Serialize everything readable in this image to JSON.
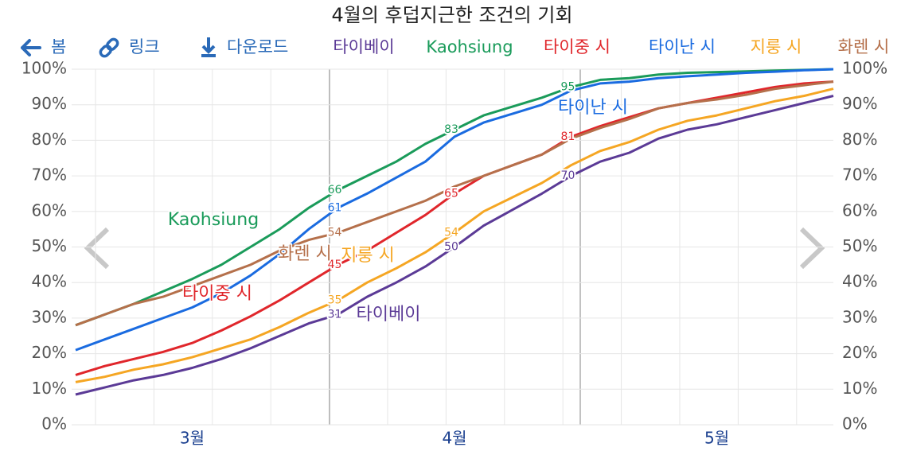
{
  "toolbar": {
    "back": "봄",
    "link": "링크",
    "download": "다운로드"
  },
  "chart_data": {
    "type": "line",
    "title": "4월의 후덥지근한 조건의 기회",
    "categories": [
      null,
      null,
      null,
      null,
      "3월",
      null,
      null,
      null,
      null,
      null,
      null,
      null,
      null,
      "4월",
      null,
      null,
      null,
      null,
      null,
      null,
      null,
      null,
      "5월",
      null,
      null,
      null,
      null
    ],
    "ylim": [
      0,
      100
    ],
    "yticks": [
      {
        "value": 0,
        "label": "0%"
      },
      {
        "value": 10,
        "label": "10%"
      },
      {
        "value": 20,
        "label": "20%"
      },
      {
        "value": 30,
        "label": "30%"
      },
      {
        "value": 40,
        "label": "40%"
      },
      {
        "value": 50,
        "label": "50%"
      },
      {
        "value": 60,
        "label": "60%"
      },
      {
        "value": 70,
        "label": "70%"
      },
      {
        "value": 80,
        "label": "80%"
      },
      {
        "value": 90,
        "label": "90%"
      },
      {
        "value": 100,
        "label": "100%"
      }
    ],
    "grid": true,
    "series": [
      {
        "name": "타이베이",
        "color": "#5b3a96",
        "values": [
          8.5,
          10.5,
          12.5,
          14,
          16,
          18.5,
          21.5,
          25,
          28.5,
          31,
          36,
          40,
          44.5,
          50,
          56,
          60.5,
          65,
          70,
          74,
          76.5,
          80.5,
          83,
          84.5,
          86.5,
          88.5,
          90.5,
          92.5
        ],
        "value_labels": [
          null,
          null,
          null,
          null,
          null,
          null,
          null,
          null,
          null,
          "31",
          null,
          null,
          null,
          "50",
          null,
          null,
          null,
          "70",
          null,
          null,
          null,
          null,
          null,
          null,
          null,
          null,
          null
        ]
      },
      {
        "name": "Kaohsiung",
        "color": "#1a9b5a",
        "values": [
          28,
          31,
          34,
          37.5,
          41,
          45,
          50,
          55,
          61,
          66,
          70,
          74,
          79,
          83,
          87,
          89.5,
          92,
          95,
          97,
          97.5,
          98.5,
          99,
          99.2,
          99.4,
          99.6,
          99.8,
          100
        ],
        "value_labels": [
          null,
          null,
          null,
          null,
          null,
          null,
          null,
          null,
          null,
          "66",
          null,
          null,
          null,
          "83",
          null,
          null,
          null,
          "95",
          null,
          null,
          null,
          null,
          null,
          null,
          null,
          null,
          null
        ]
      },
      {
        "name": "타이중 시",
        "color": "#e0262b",
        "values": [
          14,
          16.5,
          18.5,
          20.5,
          23,
          26.5,
          30.5,
          35,
          40,
          45,
          49,
          54,
          59,
          65,
          70,
          73,
          76,
          81,
          84,
          86.5,
          89,
          90.5,
          92,
          93.5,
          95,
          96,
          96.5
        ],
        "value_labels": [
          null,
          null,
          null,
          null,
          null,
          null,
          null,
          null,
          null,
          "45",
          null,
          null,
          null,
          "65",
          null,
          null,
          null,
          "81",
          null,
          null,
          null,
          null,
          null,
          null,
          null,
          null,
          null
        ]
      },
      {
        "name": "타이난 시",
        "color": "#1a6be0",
        "values": [
          21,
          24,
          27,
          30,
          33,
          37,
          42,
          48,
          55,
          61,
          65,
          69.5,
          74,
          81,
          85,
          87.5,
          90,
          94,
          96,
          96.5,
          97.5,
          98,
          98.5,
          99,
          99.3,
          99.7,
          100
        ],
        "value_labels": [
          null,
          null,
          null,
          null,
          null,
          null,
          null,
          null,
          null,
          "61",
          null,
          null,
          null,
          null,
          null,
          null,
          null,
          null,
          null,
          null,
          null,
          null,
          null,
          null,
          null,
          null,
          null
        ]
      },
      {
        "name": "지룽 시",
        "color": "#f5a623",
        "values": [
          12,
          13.5,
          15.5,
          17,
          19,
          21.5,
          24,
          27.5,
          31.5,
          35,
          40,
          44,
          48.5,
          54,
          60,
          64,
          68,
          73,
          77,
          79.5,
          83,
          85.5,
          87,
          89,
          91,
          92.5,
          94.5
        ],
        "value_labels": [
          null,
          null,
          null,
          null,
          null,
          null,
          null,
          null,
          null,
          "35",
          null,
          null,
          null,
          "54",
          null,
          null,
          null,
          null,
          null,
          null,
          null,
          null,
          null,
          null,
          null,
          null,
          null
        ]
      },
      {
        "name": "화렌 시",
        "color": "#b5704b",
        "values": [
          28,
          31,
          34,
          36,
          39,
          42,
          45,
          49,
          52,
          54,
          57,
          60,
          63,
          67,
          70,
          73,
          76,
          80.5,
          83.5,
          86,
          89,
          90.5,
          91.5,
          92.8,
          94.5,
          95.5,
          96.5
        ],
        "value_labels": [
          null,
          null,
          null,
          null,
          null,
          null,
          null,
          null,
          null,
          "54",
          null,
          null,
          null,
          null,
          null,
          null,
          null,
          null,
          null,
          null,
          null,
          null,
          null,
          null,
          null,
          null,
          null
        ]
      }
    ]
  }
}
